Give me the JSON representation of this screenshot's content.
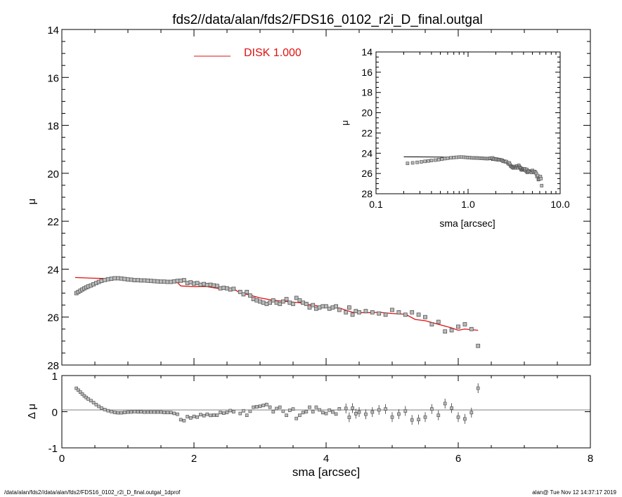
{
  "chart_data": {
    "title": "fds2//data/alan/fds2/FDS16_0102_r2i_D_final.outgal",
    "footer_left": "/data/alan/fds2//data/alan/fds2/FDS16_0102_r2i_D_final.outgal_1dprof",
    "footer_right": "alan@  Tue Nov 12 14:37:17 2019",
    "colors": {
      "model": "#e01010",
      "points": "#555555",
      "axes": "#000000",
      "legend_text": "#e01010"
    },
    "main": {
      "type": "scatter",
      "xlim": [
        0,
        8
      ],
      "ylim": [
        28,
        14
      ],
      "ylabel": "μ",
      "yticks": [
        "14",
        "16",
        "18",
        "20",
        "22",
        "24",
        "26",
        "28"
      ],
      "legend": {
        "label": "DISK  1.000",
        "position": "top-center"
      },
      "model": [
        [
          0.2,
          24.35
        ],
        [
          0.5,
          24.38
        ],
        [
          0.8,
          24.4
        ],
        [
          1.0,
          24.44
        ],
        [
          1.3,
          24.49
        ],
        [
          1.6,
          24.55
        ],
        [
          1.75,
          24.56
        ],
        [
          1.8,
          24.7
        ],
        [
          2.0,
          24.73
        ],
        [
          2.2,
          24.73
        ],
        [
          2.4,
          24.82
        ],
        [
          2.6,
          24.82
        ],
        [
          2.7,
          25.0
        ],
        [
          2.8,
          25.05
        ],
        [
          3.0,
          25.2
        ],
        [
          3.2,
          25.3
        ],
        [
          3.4,
          25.35
        ],
        [
          3.6,
          25.4
        ],
        [
          3.8,
          25.5
        ],
        [
          4.0,
          25.6
        ],
        [
          4.2,
          25.62
        ],
        [
          4.4,
          25.8
        ],
        [
          4.6,
          25.82
        ],
        [
          4.8,
          25.8
        ],
        [
          5.0,
          25.85
        ],
        [
          5.2,
          25.88
        ],
        [
          5.35,
          26.1
        ],
        [
          5.5,
          26.15
        ],
        [
          5.7,
          26.3
        ],
        [
          5.9,
          26.45
        ],
        [
          6.0,
          26.55
        ],
        [
          6.1,
          26.5
        ],
        [
          6.3,
          26.55
        ]
      ],
      "points": [
        [
          0.22,
          25.0
        ],
        [
          0.25,
          24.95
        ],
        [
          0.28,
          24.9
        ],
        [
          0.31,
          24.85
        ],
        [
          0.34,
          24.8
        ],
        [
          0.37,
          24.76
        ],
        [
          0.4,
          24.72
        ],
        [
          0.44,
          24.68
        ],
        [
          0.48,
          24.63
        ],
        [
          0.52,
          24.58
        ],
        [
          0.56,
          24.53
        ],
        [
          0.6,
          24.49
        ],
        [
          0.65,
          24.45
        ],
        [
          0.7,
          24.42
        ],
        [
          0.75,
          24.4
        ],
        [
          0.8,
          24.38
        ],
        [
          0.85,
          24.38
        ],
        [
          0.9,
          24.39
        ],
        [
          0.95,
          24.41
        ],
        [
          1.0,
          24.43
        ],
        [
          1.05,
          24.44
        ],
        [
          1.1,
          24.46
        ],
        [
          1.15,
          24.46
        ],
        [
          1.2,
          24.47
        ],
        [
          1.25,
          24.47
        ],
        [
          1.3,
          24.48
        ],
        [
          1.35,
          24.49
        ],
        [
          1.4,
          24.5
        ],
        [
          1.45,
          24.51
        ],
        [
          1.5,
          24.52
        ],
        [
          1.55,
          24.52
        ],
        [
          1.6,
          24.53
        ],
        [
          1.65,
          24.53
        ],
        [
          1.7,
          24.51
        ],
        [
          1.75,
          24.49
        ],
        [
          1.8,
          24.48
        ],
        [
          1.85,
          24.46
        ],
        [
          1.9,
          24.58
        ],
        [
          1.95,
          24.55
        ],
        [
          2.0,
          24.6
        ],
        [
          2.05,
          24.58
        ],
        [
          2.1,
          24.65
        ],
        [
          2.15,
          24.62
        ],
        [
          2.2,
          24.66
        ],
        [
          2.25,
          24.65
        ],
        [
          2.3,
          24.68
        ],
        [
          2.35,
          24.7
        ],
        [
          2.4,
          24.8
        ],
        [
          2.45,
          24.78
        ],
        [
          2.5,
          24.8
        ],
        [
          2.55,
          24.85
        ],
        [
          2.6,
          24.82
        ],
        [
          2.7,
          24.95
        ],
        [
          2.75,
          25.05
        ],
        [
          2.8,
          24.95
        ],
        [
          2.85,
          25.1
        ],
        [
          2.9,
          25.25
        ],
        [
          2.95,
          25.3
        ],
        [
          3.0,
          25.35
        ],
        [
          3.05,
          25.4
        ],
        [
          3.1,
          25.45
        ],
        [
          3.15,
          25.4
        ],
        [
          3.2,
          25.3
        ],
        [
          3.25,
          25.4
        ],
        [
          3.3,
          25.45
        ],
        [
          3.35,
          25.35
        ],
        [
          3.4,
          25.25
        ],
        [
          3.45,
          25.4
        ],
        [
          3.5,
          25.45
        ],
        [
          3.55,
          25.2
        ],
        [
          3.6,
          25.3
        ],
        [
          3.65,
          25.4
        ],
        [
          3.7,
          25.45
        ],
        [
          3.75,
          25.6
        ],
        [
          3.8,
          25.5
        ],
        [
          3.85,
          25.65
        ],
        [
          3.9,
          25.6
        ],
        [
          3.95,
          25.55
        ],
        [
          4.0,
          25.55
        ],
        [
          4.05,
          25.65
        ],
        [
          4.1,
          25.6
        ],
        [
          4.15,
          25.55
        ],
        [
          4.2,
          25.7
        ],
        [
          4.3,
          25.8
        ],
        [
          4.35,
          25.6
        ],
        [
          4.4,
          25.9
        ],
        [
          4.45,
          25.75
        ],
        [
          4.5,
          25.8
        ],
        [
          4.6,
          25.75
        ],
        [
          4.7,
          25.8
        ],
        [
          4.8,
          25.85
        ],
        [
          4.9,
          25.9
        ],
        [
          5.0,
          25.7
        ],
        [
          5.1,
          25.8
        ],
        [
          5.2,
          25.9
        ],
        [
          5.3,
          25.8
        ],
        [
          5.4,
          25.9
        ],
        [
          5.5,
          26.0
        ],
        [
          5.6,
          26.3
        ],
        [
          5.7,
          26.2
        ],
        [
          5.8,
          26.6
        ],
        [
          5.9,
          26.55
        ],
        [
          6.0,
          26.4
        ],
        [
          6.1,
          26.3
        ],
        [
          6.2,
          26.5
        ],
        [
          6.3,
          27.2
        ]
      ]
    },
    "inset": {
      "type": "scatter",
      "xscale": "log",
      "xlim": [
        0.1,
        10
      ],
      "ylim": [
        28,
        14
      ],
      "ylabel": "μ",
      "xlabel": "sma [arcsec]",
      "xticks": [
        "0.1",
        "1.0",
        "10.0"
      ],
      "yticks": [
        "14",
        "16",
        "18",
        "20",
        "22",
        "24",
        "26",
        "28"
      ]
    },
    "residual": {
      "type": "scatter",
      "xlim": [
        0,
        8
      ],
      "ylim": [
        -1,
        1
      ],
      "ylabel": "Δ μ",
      "xlabel": "sma [arcsec]",
      "xticks": [
        "0",
        "2",
        "4",
        "6",
        "8"
      ],
      "yticks": [
        "1",
        "0",
        "-1"
      ],
      "reference_line": 0
    }
  }
}
